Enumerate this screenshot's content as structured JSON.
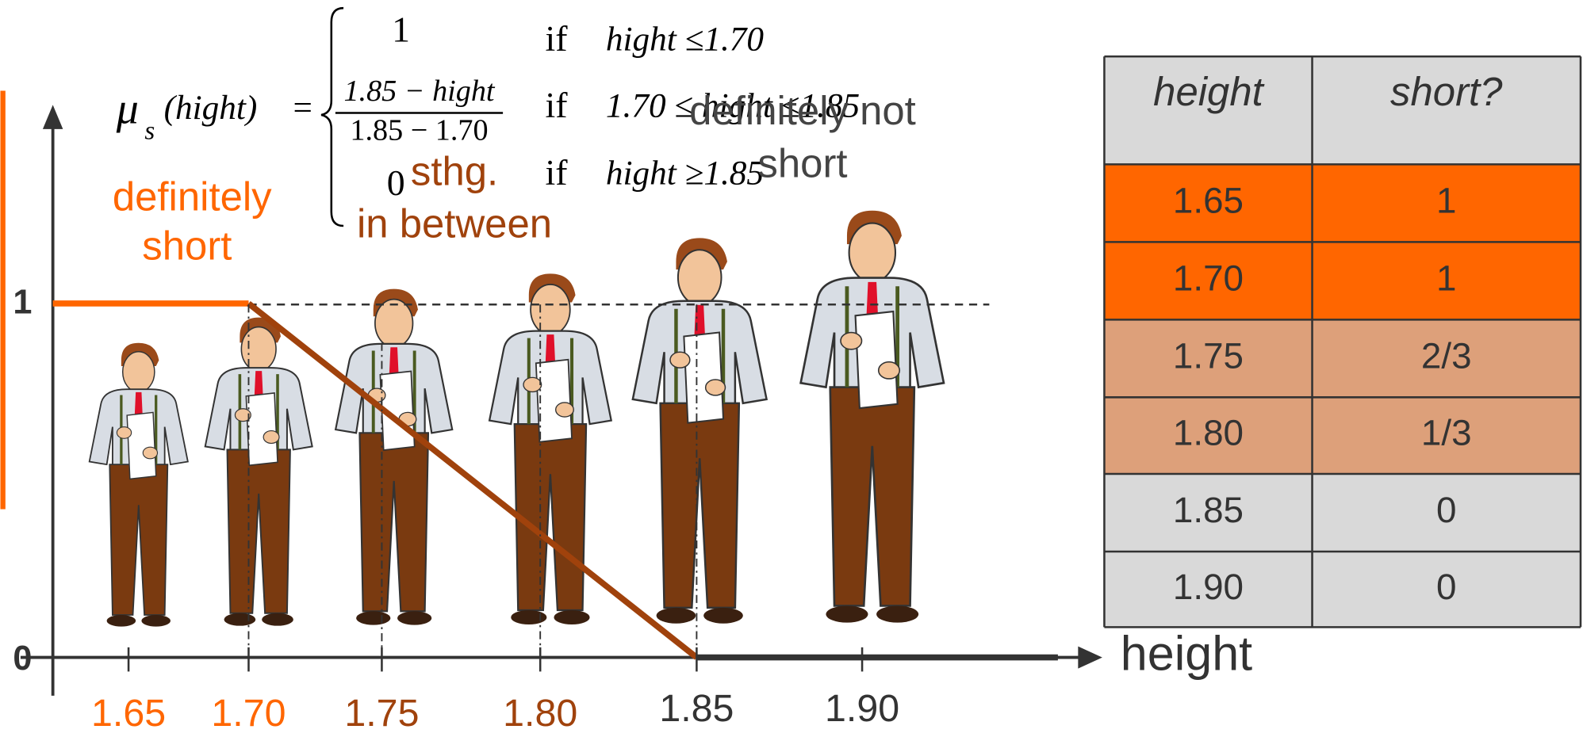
{
  "formula": {
    "lhs": "μ",
    "subscript": "s",
    "argument": "(hight)",
    "equals": "=",
    "cases": [
      {
        "value": "1",
        "condition_if": "if",
        "condition": "hight ≤1.70"
      },
      {
        "numerator": "1.85 − hight",
        "denominator": "1.85 − 1.70",
        "condition_if": "if",
        "condition": "1.70 ≤ hight ≤1.85"
      },
      {
        "value": "0",
        "condition_if": "if",
        "condition": "hight ≥1.85"
      }
    ]
  },
  "annotations": {
    "short": [
      "definitely",
      "short"
    ],
    "between": [
      "sthg.",
      "in between"
    ],
    "not_short": [
      "definitely not",
      "short"
    ]
  },
  "axis": {
    "x_label": "height",
    "y_ticks": [
      "1",
      "0"
    ],
    "x_ticks": [
      "1.65",
      "1.70",
      "1.75",
      "1.80",
      "1.85",
      "1.90"
    ]
  },
  "table": {
    "header": [
      "height",
      "short?"
    ],
    "rows": [
      [
        "1.65",
        "1"
      ],
      [
        "1.70",
        "1"
      ],
      [
        "1.75",
        "2/3"
      ],
      [
        "1.80",
        "1/3"
      ],
      [
        "1.85",
        "0"
      ],
      [
        "1.90",
        "0"
      ]
    ]
  }
}
